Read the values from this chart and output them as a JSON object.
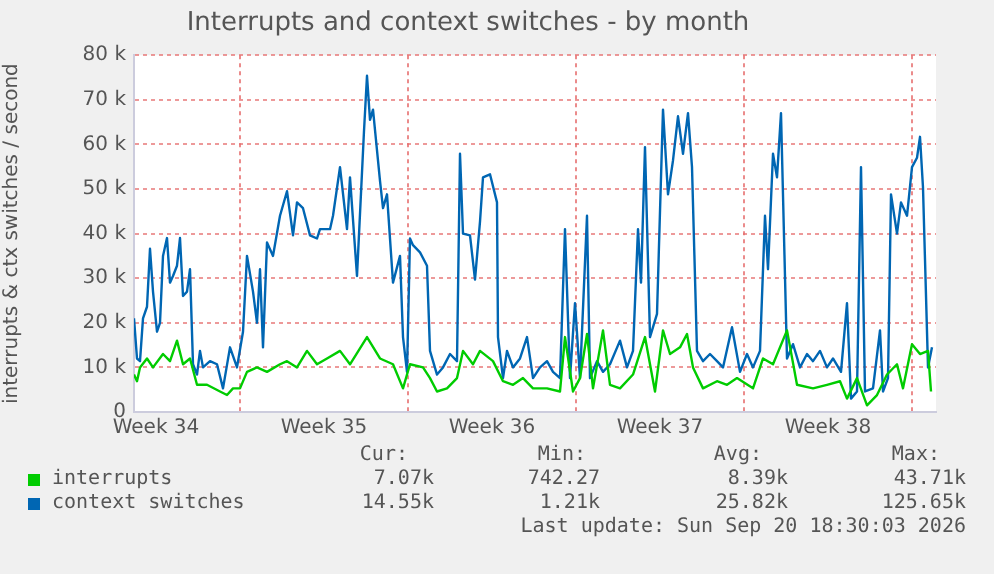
{
  "chart_data": {
    "type": "line",
    "title": "Interrupts and context switches - by month",
    "ylabel": "interrupts & ctx switches / second",
    "xlim": [
      "2026-08-19T14:00",
      "2026-09-22T00:00"
    ],
    "xticks": [
      {
        "value": "2026-08-20T12:00",
        "label": "Week 34"
      },
      {
        "value": "2026-08-24T00:00",
        "label": null
      },
      {
        "value": "2026-08-27T12:00",
        "label": "Week 35"
      },
      {
        "value": "2026-08-31T00:00",
        "label": null
      },
      {
        "value": "2026-09-03T12:00",
        "label": "Week 36"
      },
      {
        "value": "2026-09-07T00:00",
        "label": null
      },
      {
        "value": "2026-09-10T12:00",
        "label": "Week 37"
      },
      {
        "value": "2026-09-14T00:00",
        "label": null
      },
      {
        "value": "2026-09-17T12:00",
        "label": "Week 38"
      },
      {
        "value": "2026-09-21T00:00",
        "label": null
      }
    ],
    "ylim": [
      0,
      80000
    ],
    "yticks": [
      0,
      {
        "value": 10000,
        "label": "10 k"
      },
      {
        "value": 20000,
        "label": "20 k"
      },
      {
        "value": 30000,
        "label": "30 k"
      },
      {
        "value": 40000,
        "label": "40 k"
      },
      {
        "value": 50000,
        "label": "50 k"
      },
      {
        "value": 60000,
        "label": "60 k"
      },
      {
        "value": 70000,
        "label": "70 k"
      },
      {
        "value": 80000,
        "label": "80 k"
      }
    ],
    "grid": true,
    "legend": "bottom",
    "marker": "none",
    "line_style": "solid",
    "series": [
      {
        "name": "interrupts",
        "color": "#00cc00",
        "x": [
          "2026-08-19T14:00",
          "2026-08-19T17:00",
          "2026-08-19T20:00",
          "2026-08-20T03:00",
          "2026-08-20T09:00",
          "2026-08-20T19:00",
          "2026-08-21T02:00",
          "2026-08-21T09:00",
          "2026-08-21T15:00",
          "2026-08-21T22:00",
          "2026-08-22T05:00",
          "2026-08-22T15:00",
          "2026-08-23T04:00",
          "2026-08-23T11:00",
          "2026-08-23T17:00",
          "2026-08-24T00:00",
          "2026-08-24T07:00",
          "2026-08-24T17:00",
          "2026-08-25T03:00",
          "2026-08-25T16:00",
          "2026-08-25T23:00",
          "2026-08-26T09:00",
          "2026-08-26T19:00",
          "2026-08-27T05:00",
          "2026-08-27T15:00",
          "2026-08-28T04:00",
          "2026-08-28T14:00",
          "2026-08-29T07:00",
          "2026-08-29T20:00",
          "2026-08-30T09:00",
          "2026-08-30T19:00",
          "2026-08-31T02:00",
          "2026-08-31T15:00",
          "2026-08-31T22:00",
          "2026-09-01T05:00",
          "2026-09-01T15:00",
          "2026-09-02T01:00",
          "2026-09-02T07:00",
          "2026-09-02T17:00",
          "2026-09-03T00:00",
          "2026-09-03T13:00",
          "2026-09-03T23:00",
          "2026-09-04T09:00",
          "2026-09-04T19:00",
          "2026-09-05T05:00",
          "2026-09-05T19:00",
          "2026-09-06T08:00",
          "2026-09-06T13:00",
          "2026-09-06T21:00",
          "2026-09-07T04:00",
          "2026-09-07T11:00",
          "2026-09-07T17:00",
          "2026-09-08T03:00",
          "2026-09-08T10:00",
          "2026-09-08T20:00",
          "2026-09-09T09:00",
          "2026-09-09T21:00",
          "2026-09-10T07:00",
          "2026-09-10T15:00",
          "2026-09-10T22:00",
          "2026-09-11T08:00",
          "2026-09-11T15:00",
          "2026-09-11T21:00",
          "2026-09-12T07:00",
          "2026-09-12T21:00",
          "2026-09-13T07:00",
          "2026-09-13T17:00",
          "2026-09-14T09:00",
          "2026-09-14T19:00",
          "2026-09-15T05:00",
          "2026-09-15T19:00",
          "2026-09-16T05:00",
          "2026-09-16T21:00",
          "2026-09-17T11:00",
          "2026-09-18T00:00",
          "2026-09-18T07:00",
          "2026-09-18T17:00",
          "2026-09-19T03:00",
          "2026-09-19T13:00",
          "2026-09-19T23:00",
          "2026-09-20T09:00",
          "2026-09-20T15:00",
          "2026-09-21T00:00",
          "2026-09-21T08:00",
          "2026-09-21T16:00",
          "2026-09-21T19:00"
        ],
        "values": [
          8400,
          6900,
          10000,
          12000,
          10000,
          13000,
          11400,
          16000,
          10700,
          12000,
          6100,
          6100,
          4600,
          3800,
          5300,
          5300,
          9000,
          10000,
          9000,
          10700,
          11400,
          10000,
          13700,
          10700,
          12000,
          13700,
          10700,
          16800,
          12000,
          10700,
          5300,
          10700,
          10000,
          7600,
          4600,
          5300,
          7600,
          13700,
          10700,
          13700,
          11400,
          6900,
          6100,
          7600,
          5300,
          5300,
          4600,
          16800,
          4600,
          7600,
          17500,
          5300,
          18300,
          6100,
          5300,
          8400,
          16800,
          4600,
          18300,
          13000,
          14500,
          17500,
          10000,
          5300,
          6900,
          6100,
          7600,
          5300,
          12000,
          10700,
          18300,
          6100,
          5300,
          6100,
          6900,
          3000,
          7600,
          1500,
          3800,
          8400,
          10700,
          5300,
          15200,
          13000,
          13700,
          4600
        ]
      },
      {
        "name": "context switches",
        "color": "#0066b3",
        "x": [
          "2026-08-19T14:00",
          "2026-08-19T17:00",
          "2026-08-19T20:00",
          "2026-08-19T23:00",
          "2026-08-20T03:00",
          "2026-08-20T06:00",
          "2026-08-20T09:00",
          "2026-08-20T13:00",
          "2026-08-20T16:00",
          "2026-08-20T19:00",
          "2026-08-20T23:00",
          "2026-08-21T02:00",
          "2026-08-21T05:00",
          "2026-08-21T09:00",
          "2026-08-21T12:00",
          "2026-08-21T15:00",
          "2026-08-21T19:00",
          "2026-08-21T22:00",
          "2026-08-22T01:00",
          "2026-08-22T05:00",
          "2026-08-22T08:00",
          "2026-08-22T11:00",
          "2026-08-22T18:00",
          "2026-08-23T01:00",
          "2026-08-23T07:00",
          "2026-08-23T14:00",
          "2026-08-23T21:00",
          "2026-08-24T03:00",
          "2026-08-24T07:00",
          "2026-08-24T13:00",
          "2026-08-24T17:00",
          "2026-08-24T20:00",
          "2026-08-24T23:00",
          "2026-08-25T03:00",
          "2026-08-25T09:00",
          "2026-08-25T16:00",
          "2026-08-25T23:00",
          "2026-08-26T05:00",
          "2026-08-26T09:00",
          "2026-08-26T15:00",
          "2026-08-26T22:00",
          "2026-08-27T05:00",
          "2026-08-27T08:00",
          "2026-08-27T15:00",
          "2026-08-27T18:00",
          "2026-08-27T21:00",
          "2026-08-28T04:00",
          "2026-08-28T11:00",
          "2026-08-28T14:00",
          "2026-08-28T21:00",
          "2026-08-29T04:00",
          "2026-08-29T07:00",
          "2026-08-29T10:00",
          "2026-08-29T13:00",
          "2026-08-29T20:00",
          "2026-08-29T23:00",
          "2026-08-30T03:00",
          "2026-08-30T09:00",
          "2026-08-30T16:00",
          "2026-08-30T19:00",
          "2026-08-30T23:00",
          "2026-08-31T02:00",
          "2026-08-31T05:00",
          "2026-08-31T12:00",
          "2026-08-31T19:00",
          "2026-08-31T22:00",
          "2026-09-01T05:00",
          "2026-09-01T11:00",
          "2026-09-01T18:00",
          "2026-09-02T01:00",
          "2026-09-02T04:00",
          "2026-09-02T07:00",
          "2026-09-02T14:00",
          "2026-09-02T19:00",
          "2026-09-03T00:00",
          "2026-09-03T03:00",
          "2026-09-03T10:00",
          "2026-09-03T17:00",
          "2026-09-03T18:00",
          "2026-09-03T23:00",
          "2026-09-04T03:00",
          "2026-09-04T09:00",
          "2026-09-04T16:00",
          "2026-09-04T23:00",
          "2026-09-05T05:00",
          "2026-09-05T12:00",
          "2026-09-05T19:00",
          "2026-09-06T01:00",
          "2026-09-06T08:00",
          "2026-09-06T13:00",
          "2026-09-06T18:00",
          "2026-09-06T23:00",
          "2026-09-07T04:00",
          "2026-09-07T11:00",
          "2026-09-07T14:00",
          "2026-09-07T21:00",
          "2026-09-08T03:00",
          "2026-09-08T10:00",
          "2026-09-08T20:00",
          "2026-09-09T03:00",
          "2026-09-09T09:00",
          "2026-09-09T14:00",
          "2026-09-09T17:00",
          "2026-09-09T21:00",
          "2026-09-10T02:00",
          "2026-09-10T09:00",
          "2026-09-10T15:00",
          "2026-09-10T20:00",
          "2026-09-11T01:00",
          "2026-09-11T06:00",
          "2026-09-11T11:00",
          "2026-09-11T16:00",
          "2026-09-11T20:00",
          "2026-09-12T01:00",
          "2026-09-12T07:00",
          "2026-09-12T14:00",
          "2026-09-12T21:00",
          "2026-09-13T03:00",
          "2026-09-13T12:00",
          "2026-09-13T20:00",
          "2026-09-14T03:00",
          "2026-09-14T09:00",
          "2026-09-14T16:00",
          "2026-09-14T21:00",
          "2026-09-15T00:00",
          "2026-09-15T05:00",
          "2026-09-15T09:00",
          "2026-09-15T13:00",
          "2026-09-15T19:00",
          "2026-09-16T01:00",
          "2026-09-16T08:00",
          "2026-09-16T15:00",
          "2026-09-16T21:00",
          "2026-09-17T04:00",
          "2026-09-17T11:00",
          "2026-09-17T17:00",
          "2026-09-18T01:00",
          "2026-09-18T07:00",
          "2026-09-18T11:00",
          "2026-09-18T17:00",
          "2026-09-18T21:00",
          "2026-09-19T01:00",
          "2026-09-19T09:00",
          "2026-09-19T16:00",
          "2026-09-19T19:00",
          "2026-09-20T00:00",
          "2026-09-20T03:00",
          "2026-09-20T09:00",
          "2026-09-20T13:00",
          "2026-09-20T19:00",
          "2026-09-21T00:00",
          "2026-09-21T05:00",
          "2026-09-21T08:00",
          "2026-09-21T11:00",
          "2026-09-21T16:00",
          "2026-09-21T20:00"
        ],
        "values": [
          21000,
          12000,
          11400,
          21000,
          23600,
          36600,
          27000,
          18000,
          20000,
          35000,
          39000,
          29000,
          30500,
          32800,
          39000,
          26000,
          27000,
          32000,
          10700,
          8400,
          13700,
          10000,
          11400,
          10700,
          5300,
          14500,
          10000,
          18000,
          35000,
          27000,
          20000,
          32000,
          14500,
          38000,
          35000,
          44000,
          49500,
          39600,
          47000,
          45700,
          39600,
          38900,
          41000,
          41000,
          41000,
          44000,
          54900,
          41000,
          52600,
          30500,
          63000,
          75400,
          65500,
          67800,
          51800,
          45700,
          48800,
          29000,
          35000,
          16800,
          9000,
          38900,
          37400,
          35800,
          32800,
          13700,
          8400,
          10000,
          13000,
          11400,
          57900,
          40000,
          39600,
          29700,
          42700,
          52600,
          53300,
          47000,
          16800,
          7600,
          13700,
          10000,
          12000,
          16800,
          7600,
          10000,
          11400,
          9000,
          7600,
          41000,
          7600,
          24400,
          7600,
          44000,
          7600,
          11400,
          9000,
          10700,
          16000,
          10000,
          13700,
          41000,
          29000,
          59400,
          16800,
          22000,
          67800,
          48800,
          56400,
          66300,
          57900,
          67000,
          54900,
          13700,
          11400,
          13000,
          11400,
          10000,
          19000,
          9000,
          13000,
          10000,
          13700,
          44000,
          32000,
          57900,
          52600,
          67000,
          12000,
          15200,
          10000,
          13000,
          11400,
          13700,
          10000,
          12000,
          9000,
          24400,
          3000,
          4600,
          54900,
          4600,
          5300,
          18300,
          4600,
          7600,
          48800,
          40000,
          47000,
          44000,
          54900,
          57000,
          61700,
          50300,
          10000,
          14500
        ]
      }
    ],
    "annotations": [
      "Cur:",
      "Min:",
      "Avg:",
      "Max:",
      "7.07k",
      "742.27",
      "8.39k",
      "43.71k",
      "14.55k",
      "1.21k",
      "25.82k",
      "125.65k",
      "Last update: Sun Sep 20 18:30:03 2026"
    ]
  }
}
